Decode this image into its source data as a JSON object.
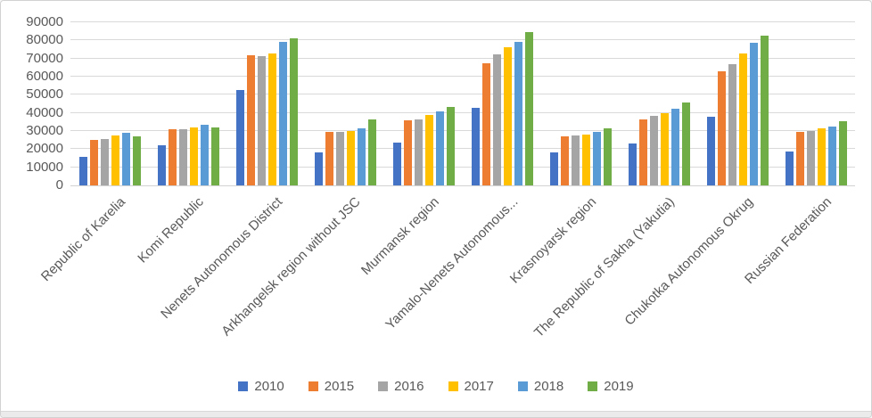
{
  "chart_data": {
    "type": "bar",
    "title": "",
    "xlabel": "",
    "ylabel": "",
    "ylim": [
      0,
      90000
    ],
    "y_tick_step": 10000,
    "y_ticks": [
      0,
      10000,
      20000,
      30000,
      40000,
      50000,
      60000,
      70000,
      80000,
      90000
    ],
    "y_tick_labels": [
      "0",
      "10000",
      "20000",
      "30000",
      "40000",
      "50000",
      "60000",
      "70000",
      "80000",
      "90000"
    ],
    "grid": true,
    "legend_position": "bottom",
    "categories": [
      "Republic of Karelia",
      "Komi Republic",
      "Nenets Autonomous District",
      "Arkhangelsk region without JSC",
      "Murmansk region",
      "Yamalo-Nenets Autonomous...",
      "Krasnoyarsk region",
      "The Republic of Sakha (Yakutia)",
      "Chukotka Autonomous Okrug",
      "Russian Federation"
    ],
    "series": [
      {
        "name": "2010",
        "color": "#4472C4",
        "values": [
          15500,
          22000,
          52500,
          18000,
          23500,
          43000,
          18000,
          23000,
          38000,
          18500
        ]
      },
      {
        "name": "2015",
        "color": "#ED7D31",
        "values": [
          25000,
          31000,
          72000,
          29500,
          36000,
          67500,
          27000,
          36500,
          63000,
          29500
        ]
      },
      {
        "name": "2016",
        "color": "#A5A5A5",
        "values": [
          25500,
          31000,
          71500,
          29500,
          36500,
          72500,
          27500,
          38500,
          67000,
          30000
        ]
      },
      {
        "name": "2017",
        "color": "#FFC000",
        "values": [
          27500,
          32000,
          73000,
          30000,
          39000,
          76000,
          28000,
          40000,
          73000,
          31500
        ]
      },
      {
        "name": "2018",
        "color": "#5B9BD5",
        "values": [
          29000,
          33500,
          79000,
          31500,
          41000,
          79000,
          29500,
          42500,
          78500,
          32500
        ]
      },
      {
        "name": "2019",
        "color": "#70AD47",
        "values": [
          27000,
          32000,
          81000,
          36500,
          43500,
          84500,
          31500,
          45500,
          82500,
          35500
        ]
      }
    ],
    "colors": {
      "gridline": "#d9d9d9",
      "axis_text": "#595959",
      "background": "#ffffff"
    }
  }
}
